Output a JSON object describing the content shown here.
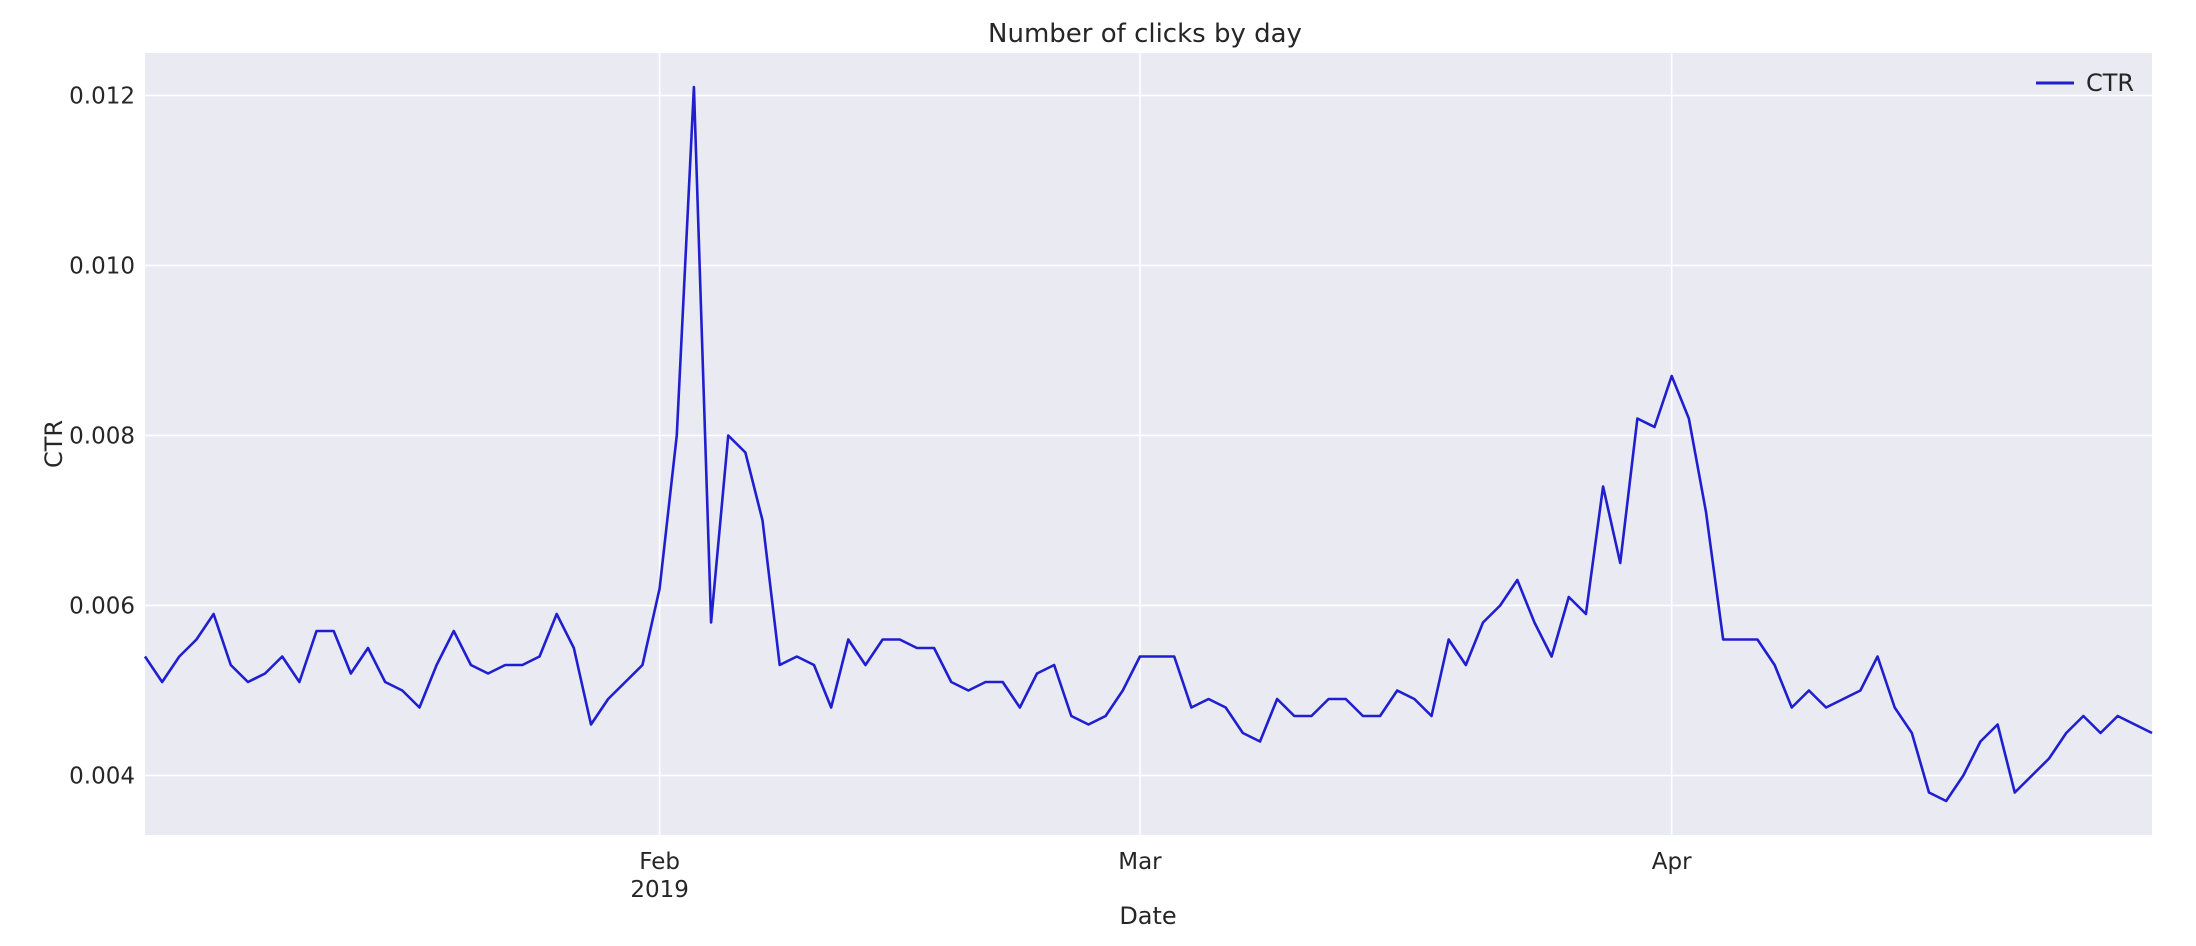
{
  "chart_data": {
    "type": "line",
    "title": "Number of clicks by day",
    "xlabel": "Date",
    "ylabel": "CTR",
    "grid": true,
    "legend_placement": "top-right",
    "x_start": "2019-01-02",
    "x_end": "2019-04-29",
    "ylim": [
      0.0033,
      0.0125
    ],
    "x_ticks": [
      {
        "date": "2019-02-01",
        "label": "Feb",
        "sublabel": "2019"
      },
      {
        "date": "2019-03-01",
        "label": "Mar",
        "sublabel": ""
      },
      {
        "date": "2019-04-01",
        "label": "Apr",
        "sublabel": ""
      }
    ],
    "y_ticks": [
      {
        "value": 0.004,
        "label": "0.004"
      },
      {
        "value": 0.006,
        "label": "0.006"
      },
      {
        "value": 0.008,
        "label": "0.008"
      },
      {
        "value": 0.01,
        "label": "0.010"
      },
      {
        "value": 0.012,
        "label": "0.012"
      }
    ],
    "series": [
      {
        "name": "CTR",
        "color": "#1f1fd0",
        "points": [
          [
            "2019-01-02",
            0.0054
          ],
          [
            "2019-01-03",
            0.0051
          ],
          [
            "2019-01-04",
            0.0054
          ],
          [
            "2019-01-05",
            0.0056
          ],
          [
            "2019-01-06",
            0.0059
          ],
          [
            "2019-01-07",
            0.0053
          ],
          [
            "2019-01-08",
            0.0051
          ],
          [
            "2019-01-09",
            0.0052
          ],
          [
            "2019-01-10",
            0.0054
          ],
          [
            "2019-01-11",
            0.0051
          ],
          [
            "2019-01-12",
            0.0057
          ],
          [
            "2019-01-13",
            0.0057
          ],
          [
            "2019-01-14",
            0.0052
          ],
          [
            "2019-01-15",
            0.0055
          ],
          [
            "2019-01-16",
            0.0051
          ],
          [
            "2019-01-17",
            0.005
          ],
          [
            "2019-01-18",
            0.0048
          ],
          [
            "2019-01-19",
            0.0053
          ],
          [
            "2019-01-20",
            0.0057
          ],
          [
            "2019-01-21",
            0.0053
          ],
          [
            "2019-01-22",
            0.0052
          ],
          [
            "2019-01-23",
            0.0053
          ],
          [
            "2019-01-24",
            0.0053
          ],
          [
            "2019-01-25",
            0.0054
          ],
          [
            "2019-01-26",
            0.0059
          ],
          [
            "2019-01-27",
            0.0055
          ],
          [
            "2019-01-28",
            0.0046
          ],
          [
            "2019-01-29",
            0.0049
          ],
          [
            "2019-01-30",
            0.0051
          ],
          [
            "2019-01-31",
            0.0053
          ],
          [
            "2019-02-01",
            0.0062
          ],
          [
            "2019-02-02",
            0.008
          ],
          [
            "2019-02-03",
            0.0121
          ],
          [
            "2019-02-04",
            0.0058
          ],
          [
            "2019-02-05",
            0.008
          ],
          [
            "2019-02-06",
            0.0078
          ],
          [
            "2019-02-07",
            0.007
          ],
          [
            "2019-02-08",
            0.0053
          ],
          [
            "2019-02-09",
            0.0054
          ],
          [
            "2019-02-10",
            0.0053
          ],
          [
            "2019-02-11",
            0.0048
          ],
          [
            "2019-02-12",
            0.0056
          ],
          [
            "2019-02-13",
            0.0053
          ],
          [
            "2019-02-14",
            0.0056
          ],
          [
            "2019-02-15",
            0.0056
          ],
          [
            "2019-02-16",
            0.0055
          ],
          [
            "2019-02-17",
            0.0055
          ],
          [
            "2019-02-18",
            0.0051
          ],
          [
            "2019-02-19",
            0.005
          ],
          [
            "2019-02-20",
            0.0051
          ],
          [
            "2019-02-21",
            0.0051
          ],
          [
            "2019-02-22",
            0.0048
          ],
          [
            "2019-02-23",
            0.0052
          ],
          [
            "2019-02-24",
            0.0053
          ],
          [
            "2019-02-25",
            0.0047
          ],
          [
            "2019-02-26",
            0.0046
          ],
          [
            "2019-02-27",
            0.0047
          ],
          [
            "2019-02-28",
            0.005
          ],
          [
            "2019-03-01",
            0.0054
          ],
          [
            "2019-03-02",
            0.0054
          ],
          [
            "2019-03-03",
            0.0054
          ],
          [
            "2019-03-04",
            0.0048
          ],
          [
            "2019-03-05",
            0.0049
          ],
          [
            "2019-03-06",
            0.0048
          ],
          [
            "2019-03-07",
            0.0045
          ],
          [
            "2019-03-08",
            0.0044
          ],
          [
            "2019-03-09",
            0.0049
          ],
          [
            "2019-03-10",
            0.0047
          ],
          [
            "2019-03-11",
            0.0047
          ],
          [
            "2019-03-12",
            0.0049
          ],
          [
            "2019-03-13",
            0.0049
          ],
          [
            "2019-03-14",
            0.0047
          ],
          [
            "2019-03-15",
            0.0047
          ],
          [
            "2019-03-16",
            0.005
          ],
          [
            "2019-03-17",
            0.0049
          ],
          [
            "2019-03-18",
            0.0047
          ],
          [
            "2019-03-19",
            0.0056
          ],
          [
            "2019-03-20",
            0.0053
          ],
          [
            "2019-03-21",
            0.0058
          ],
          [
            "2019-03-22",
            0.006
          ],
          [
            "2019-03-23",
            0.0063
          ],
          [
            "2019-03-24",
            0.0058
          ],
          [
            "2019-03-25",
            0.0054
          ],
          [
            "2019-03-26",
            0.0061
          ],
          [
            "2019-03-27",
            0.0059
          ],
          [
            "2019-03-28",
            0.0074
          ],
          [
            "2019-03-29",
            0.0065
          ],
          [
            "2019-03-30",
            0.0082
          ],
          [
            "2019-03-31",
            0.0081
          ],
          [
            "2019-04-01",
            0.0087
          ],
          [
            "2019-04-02",
            0.0082
          ],
          [
            "2019-04-03",
            0.0071
          ],
          [
            "2019-04-04",
            0.0056
          ],
          [
            "2019-04-05",
            0.0056
          ],
          [
            "2019-04-06",
            0.0056
          ],
          [
            "2019-04-07",
            0.0053
          ],
          [
            "2019-04-08",
            0.0048
          ],
          [
            "2019-04-09",
            0.005
          ],
          [
            "2019-04-10",
            0.0048
          ],
          [
            "2019-04-11",
            0.0049
          ],
          [
            "2019-04-12",
            0.005
          ],
          [
            "2019-04-13",
            0.0054
          ],
          [
            "2019-04-14",
            0.0048
          ],
          [
            "2019-04-15",
            0.0045
          ],
          [
            "2019-04-16",
            0.0038
          ],
          [
            "2019-04-17",
            0.0037
          ],
          [
            "2019-04-18",
            0.004
          ],
          [
            "2019-04-19",
            0.0044
          ],
          [
            "2019-04-20",
            0.0046
          ],
          [
            "2019-04-21",
            0.0038
          ],
          [
            "2019-04-22",
            0.004
          ],
          [
            "2019-04-23",
            0.0042
          ],
          [
            "2019-04-24",
            0.0045
          ],
          [
            "2019-04-25",
            0.0047
          ],
          [
            "2019-04-26",
            0.0045
          ],
          [
            "2019-04-27",
            0.0047
          ],
          [
            "2019-04-28",
            0.0046
          ],
          [
            "2019-04-29",
            0.0045
          ]
        ]
      }
    ]
  }
}
